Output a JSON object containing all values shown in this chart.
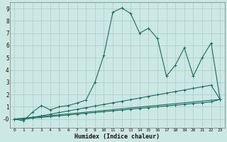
{
  "xlabel": "Humidex (Indice chaleur)",
  "ylabel": "",
  "bg_color": "#cce8e4",
  "grid_color": "#aaccca",
  "line_color": "#1a6b60",
  "xlim": [
    -0.5,
    23.5
  ],
  "ylim": [
    -0.7,
    9.5
  ],
  "xticks": [
    0,
    1,
    2,
    3,
    4,
    5,
    6,
    7,
    8,
    9,
    10,
    11,
    12,
    13,
    14,
    15,
    16,
    17,
    18,
    19,
    20,
    21,
    22,
    23
  ],
  "yticks": [
    0,
    1,
    2,
    3,
    4,
    5,
    6,
    7,
    8,
    9
  ],
  "ytick_labels": [
    "-0",
    "1",
    "2",
    "3",
    "4",
    "5",
    "6",
    "7",
    "8",
    "9"
  ],
  "lines": [
    {
      "x": [
        0,
        1,
        2,
        3,
        4,
        5,
        6,
        7,
        8,
        9,
        10,
        11,
        12,
        13,
        14,
        15,
        16,
        17,
        18,
        19,
        20,
        21,
        22,
        23
      ],
      "y": [
        0.0,
        -0.15,
        0.55,
        1.1,
        0.75,
        1.0,
        1.1,
        1.3,
        1.55,
        3.0,
        5.2,
        8.7,
        9.05,
        8.6,
        7.0,
        7.4,
        6.55,
        3.5,
        4.4,
        5.8,
        3.5,
        5.0,
        6.2,
        1.6
      ]
    },
    {
      "x": [
        0,
        23
      ],
      "y": [
        0.0,
        1.6
      ]
    },
    {
      "x": [
        0,
        1,
        2,
        3,
        4,
        5,
        6,
        7,
        8,
        9,
        10,
        11,
        12,
        13,
        14,
        15,
        16,
        17,
        18,
        19,
        20,
        21,
        22,
        23
      ],
      "y": [
        0.0,
        0.0,
        0.13,
        0.26,
        0.39,
        0.53,
        0.66,
        0.79,
        0.92,
        1.06,
        1.19,
        1.32,
        1.45,
        1.58,
        1.71,
        1.85,
        1.98,
        2.11,
        2.24,
        2.37,
        2.5,
        2.63,
        2.76,
        1.6
      ]
    },
    {
      "x": [
        0,
        1,
        2,
        3,
        4,
        5,
        6,
        7,
        8,
        9,
        10,
        11,
        12,
        13,
        14,
        15,
        16,
        17,
        18,
        19,
        20,
        21,
        22,
        23
      ],
      "y": [
        0.0,
        0.0,
        0.07,
        0.13,
        0.2,
        0.27,
        0.33,
        0.4,
        0.47,
        0.53,
        0.6,
        0.67,
        0.73,
        0.8,
        0.87,
        0.93,
        1.0,
        1.07,
        1.13,
        1.2,
        1.27,
        1.33,
        1.4,
        1.6
      ]
    }
  ]
}
